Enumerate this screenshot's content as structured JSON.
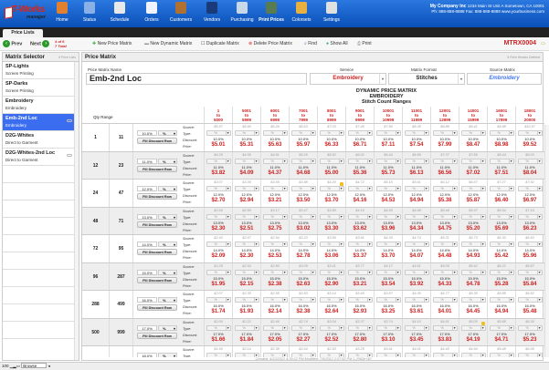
{
  "app": {
    "logo_text": "T-Works",
    "logo_sub": "manager",
    "company_name": "My Company Inc",
    "company_address": "1234 Main St Unit A Sometown, CA 10001",
    "company_contact": "Ph: 888-888-8888 Fax: 888-888-8889 www.yourbusiness.com"
  },
  "nav": [
    {
      "label": "Home",
      "icon": "home-icon",
      "color": "#e08030"
    },
    {
      "label": "Status",
      "icon": "flag-icon",
      "color": "#8ab0e8"
    },
    {
      "label": "Schedule",
      "icon": "calendar-icon",
      "color": "#e8e8e8"
    },
    {
      "label": "Orders",
      "icon": "document-icon",
      "color": "#f0f4ff"
    },
    {
      "label": "Customers",
      "icon": "address-book-icon",
      "color": "#b07030"
    },
    {
      "label": "Vendors",
      "icon": "shirt-icon",
      "color": "#1a3a7a"
    },
    {
      "label": "Purchasing",
      "icon": "basket-icon",
      "color": "#c8d8e8"
    },
    {
      "label": "Print Prices",
      "icon": "price-calculator-icon",
      "color": "#5a7a50",
      "active": true
    },
    {
      "label": "Colorsets",
      "icon": "palette-icon",
      "color": "#e8b040"
    },
    {
      "label": "Settings",
      "icon": "settings-panel-icon",
      "color": "#e0e0e0"
    }
  ],
  "tabs": [
    {
      "label": "Price Lists"
    }
  ],
  "toolbar": {
    "prev": "Prev",
    "next": "Next",
    "record_pos": "4 of 6",
    "record_total": "7 Total",
    "new_price_matrix": "New Price Matrix",
    "new_dynamic_matrix": "New Dynamic Matrix",
    "duplicate_matrix": "Duplicate Matrix",
    "delete_price_matrix": "Delete Price Matrix",
    "find": "Find",
    "show_all": "Show All",
    "print": "Print",
    "matrix_id": "MTRX0004"
  },
  "sidebar": {
    "title": "Matrix Selector",
    "count": "6 Price Lists",
    "items": [
      {
        "name": "SP-Lights",
        "service": "Screen Printing"
      },
      {
        "name": "SP-Darks",
        "service": "Screen Printing"
      },
      {
        "name": "Embroidery",
        "service": "Embroidery"
      },
      {
        "name": "Emb-2nd Loc",
        "service": "Embroidery",
        "selected": true,
        "linked": true
      },
      {
        "name": "D2G-Whites",
        "service": "Direct to Garment"
      },
      {
        "name": "D2G-Whites-2nd Loc",
        "service": "Direct to Garment",
        "linked": true
      }
    ]
  },
  "main": {
    "title": "Price Matrix",
    "breaks": "9 Price Breaks Defined",
    "name_label": "Price Matrix Name",
    "name_value": "Emb-2nd Loc",
    "service_label": "Service",
    "service_value": "Embroidery",
    "format_label": "Matrix Format",
    "format_value": "Stitches",
    "source_label": "Source Matrix",
    "source_value": "Embroidery",
    "matrix_title1": "DYNAMIC PRICE MATRIX",
    "matrix_title2": "EMBROIDERY",
    "matrix_title3": "Stitch Count Ranges",
    "qty_range_label": "Qty Range",
    "row_labels": {
      "source": "Source:",
      "type": "Type:",
      "discount": "Discount:",
      "price": "Price:"
    },
    "fill_button": "Fill Discount Row",
    "type_value": "%",
    "columns": [
      [
        "1",
        "to",
        "5000"
      ],
      [
        "5001",
        "to",
        "5999"
      ],
      [
        "6001",
        "to",
        "6999"
      ],
      [
        "7001",
        "to",
        "7999"
      ],
      [
        "8001",
        "to",
        "8999"
      ],
      [
        "9001",
        "to",
        "9999"
      ],
      [
        "10001",
        "to",
        "10999"
      ],
      [
        "11001",
        "to",
        "11999"
      ],
      [
        "12001",
        "to",
        "13999"
      ],
      [
        "14001",
        "to",
        "15999"
      ],
      [
        "16001",
        "to",
        "17999"
      ],
      [
        "18001",
        "to",
        "20000"
      ]
    ],
    "rows": [
      {
        "from": "1",
        "to": "11",
        "discount": "10.0%",
        "source": [
          "$5.57",
          "$5.90",
          "$6.26",
          "$6.63",
          "$7.03",
          "$7.45",
          "$7.90",
          "$8.38",
          "$8.88",
          "$9.41",
          "$9.98",
          "$10.57"
        ],
        "price": [
          "$5.01",
          "$5.31",
          "$5.63",
          "$5.97",
          "$6.33",
          "$6.71",
          "$7.11",
          "$7.54",
          "$7.99",
          "$8.47",
          "$8.98",
          "$9.52"
        ]
      },
      {
        "from": "12",
        "to": "23",
        "discount": "11.0%",
        "source": [
          "$4.29",
          "$4.59",
          "$4.91",
          "$5.26",
          "$5.62",
          "$6.02",
          "$6.44",
          "$6.89",
          "$7.37",
          "$7.89",
          "$8.44",
          "$9.03"
        ],
        "price": [
          "$3.82",
          "$4.09",
          "$4.37",
          "$4.68",
          "$5.00",
          "$5.36",
          "$5.73",
          "$6.13",
          "$6.56",
          "$7.02",
          "$7.51",
          "$8.04"
        ]
      },
      {
        "from": "24",
        "to": "47",
        "discount": "12.0%",
        "source": [
          "$3.07",
          "$3.35",
          "$3.65",
          "$3.98",
          "$4.20",
          "$4.72",
          "$5.15",
          "$5.61",
          "$6.12",
          "$6.67",
          "$7.27",
          "$7.92"
        ],
        "price": [
          "$2.70",
          "$2.94",
          "$3.21",
          "$3.50",
          "$3.70",
          "$4.16",
          "$4.53",
          "$4.94",
          "$5.38",
          "$5.87",
          "$6.40",
          "$6.97"
        ],
        "warn": [
          4
        ]
      },
      {
        "from": "48",
        "to": "71",
        "discount": "13.0%",
        "source": [
          "$2.64",
          "$2.89",
          "$3.17",
          "$3.47",
          "$3.80",
          "$4.16",
          "$4.55",
          "$4.98",
          "$5.46",
          "$5.97",
          "$6.54",
          "$7.16"
        ],
        "price": [
          "$2.30",
          "$2.51",
          "$2.75",
          "$3.02",
          "$3.30",
          "$3.62",
          "$3.96",
          "$4.34",
          "$4.75",
          "$5.20",
          "$5.69",
          "$6.23"
        ]
      },
      {
        "from": "72",
        "to": "95",
        "discount": "14.0%",
        "source": [
          "$2.43",
          "$2.67",
          "$2.94",
          "$3.23",
          "$3.56",
          "$3.91",
          "$4.30",
          "$4.74",
          "$5.21",
          "$5.73",
          "$6.30",
          "$6.93"
        ],
        "price": [
          "$2.09",
          "$2.30",
          "$2.53",
          "$2.78",
          "$3.06",
          "$3.37",
          "$3.70",
          "$4.07",
          "$4.48",
          "$4.93",
          "$5.42",
          "$5.96"
        ]
      },
      {
        "from": "96",
        "to": "287",
        "discount": "15.0%",
        "source": [
          "$2.29",
          "$2.53",
          "$2.80",
          "$3.09",
          "$3.41",
          "$3.77",
          "$4.17",
          "$4.61",
          "$5.09",
          "$5.62",
          "$6.22",
          "$6.87"
        ],
        "price": [
          "$1.95",
          "$2.15",
          "$2.38",
          "$2.63",
          "$2.90",
          "$3.21",
          "$3.54",
          "$3.92",
          "$4.33",
          "$4.78",
          "$5.28",
          "$5.84"
        ]
      },
      {
        "from": "288",
        "to": "499",
        "discount": "16.0%",
        "source": [
          "$2.07",
          "$2.30",
          "$2.55",
          "$2.83",
          "$3.14",
          "$3.49",
          "$3.87",
          "$4.30",
          "$4.77",
          "$5.30",
          "$5.88",
          "$6.52"
        ],
        "price": [
          "$1.74",
          "$1.93",
          "$2.14",
          "$2.38",
          "$2.64",
          "$2.93",
          "$3.25",
          "$3.61",
          "$4.01",
          "$4.45",
          "$4.94",
          "$5.48"
        ]
      },
      {
        "from": "500",
        "to": "999",
        "discount": "17.0%",
        "source": [
          "$2.00",
          "$2.22",
          "$2.46",
          "$2.74",
          "$3.04",
          "$3.37",
          "$3.74",
          "$4.15",
          "$4.61",
          "$5.05",
          "$5.68",
          "$6.30"
        ],
        "price": [
          "$1.66",
          "$1.84",
          "$2.05",
          "$2.27",
          "$2.52",
          "$2.80",
          "$3.10",
          "$3.45",
          "$3.83",
          "$4.19",
          "$4.71",
          "$5.23"
        ],
        "warn": [
          9
        ]
      },
      {
        "from": "",
        "to": "",
        "discount": "18.0%",
        "source": [
          "$1.93",
          "$2.14",
          "$2.38",
          "$2.64",
          "$2.93",
          "$3.25",
          "$3.61",
          "$4.01",
          "$4.45",
          "$4.94",
          "$5.48",
          "$6.08"
        ],
        "price": []
      }
    ],
    "footer": "Created: 6/22/2012 4:39:22 PM  Modified: 7/9/2012 2:07:53 PM 1.2063e+40"
  },
  "status": {
    "zoom": "100",
    "mode": "Browse"
  },
  "colors": {
    "accent": "#3a6df0",
    "price": "#cc2222",
    "header_blue": "#0a4fb8"
  }
}
